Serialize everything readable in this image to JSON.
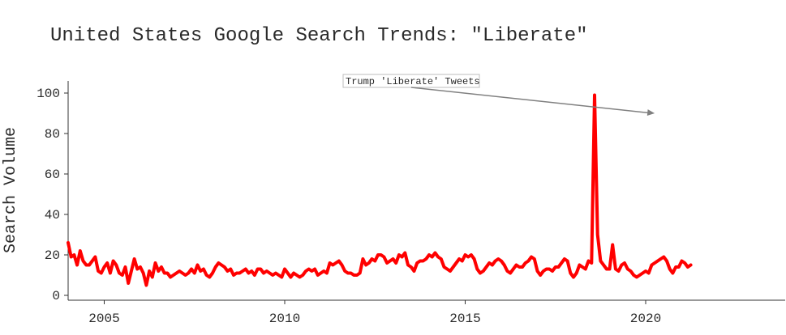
{
  "chart_data": {
    "type": "line",
    "title": "United States Google Search Trends: \"Liberate\"",
    "xlabel": "",
    "ylabel": "Search Volume",
    "xlim": [
      2004.0,
      2023.8
    ],
    "ylim": [
      -2,
      105
    ],
    "x_ticks": [
      2005,
      2010,
      2015,
      2020
    ],
    "y_ticks": [
      0,
      20,
      40,
      60,
      80,
      100
    ],
    "grid": false,
    "line_color": "#ff0000",
    "series": [
      {
        "start_year": 2004,
        "start_month": 1,
        "values": [
          26,
          19,
          20,
          15,
          22,
          17,
          15,
          15,
          17,
          19,
          12,
          11,
          14,
          16,
          11,
          17,
          15,
          11,
          10,
          14,
          6,
          12,
          18,
          13,
          14,
          11,
          5,
          12,
          9,
          16,
          12,
          14,
          11,
          11,
          9,
          10,
          11,
          12,
          11,
          10,
          11,
          13,
          11,
          15,
          12,
          13,
          10,
          9,
          11,
          14,
          16,
          15,
          14,
          12,
          13,
          10,
          11,
          11,
          12,
          13,
          11,
          12,
          10,
          13,
          13,
          11,
          12,
          11,
          10,
          11,
          10,
          9,
          13,
          11,
          9,
          11,
          10,
          9,
          10,
          12,
          13,
          12,
          13,
          10,
          11,
          12,
          11,
          16,
          15,
          16,
          17,
          15,
          12,
          11,
          11,
          10,
          10,
          11,
          18,
          15,
          16,
          18,
          17,
          20,
          20,
          19,
          16,
          17,
          18,
          16,
          20,
          19,
          21,
          15,
          14,
          12,
          16,
          17,
          17,
          18,
          20,
          19,
          21,
          19,
          18,
          14,
          13,
          12,
          14,
          16,
          18,
          17,
          20,
          19,
          20,
          18,
          13,
          11,
          12,
          14,
          16,
          15,
          17,
          18,
          17,
          15,
          12,
          11,
          13,
          15,
          14,
          14,
          16,
          17,
          19,
          18,
          12,
          10,
          12,
          13,
          13,
          12,
          14,
          14,
          16,
          18,
          17,
          11,
          9,
          11,
          15,
          14,
          13,
          17,
          16,
          99,
          30,
          17,
          15,
          13,
          13,
          25,
          13,
          12,
          15,
          16,
          13,
          12,
          10,
          9,
          10,
          11,
          12,
          11,
          15,
          16,
          17,
          18,
          19,
          17,
          13,
          11,
          14,
          14,
          17,
          16,
          14,
          15
        ]
      }
    ],
    "annotation": {
      "text": "Trump 'Liberate' Tweets",
      "point_x": 2020.25,
      "point_y": 90,
      "arrow_color": "#808080"
    }
  }
}
